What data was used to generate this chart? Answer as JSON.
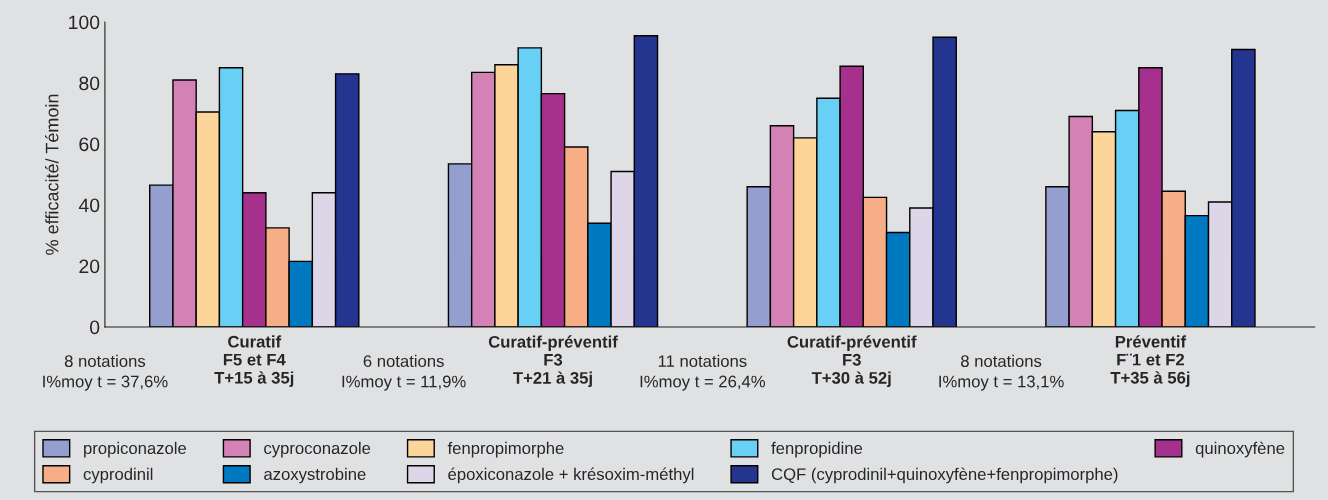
{
  "chart_data": {
    "type": "bar",
    "ylabel": "% efficacité/ Témoin",
    "categories": [
      "Curatif\nF5 et F4\nT+15 à 35j",
      "Curatif-préventif\nF3\nT+21 à 35j",
      "Curatif-préventif\nF3\nT+30 à 52j",
      "Préventif\nF¨1 et F2\nT+35 à 56j"
    ],
    "series": [
      {
        "name": "propiconazole",
        "color": "#949fd0",
        "values": [
          46.5,
          53.5,
          46,
          46
        ]
      },
      {
        "name": "cyproconazole",
        "color": "#d481b5",
        "values": [
          81,
          83.5,
          66,
          69
        ]
      },
      {
        "name": "fenpropimorphe",
        "color": "#fdd49a",
        "values": [
          70.5,
          86,
          62,
          64
        ]
      },
      {
        "name": "fenpropidine",
        "color": "#68cff5",
        "values": [
          85,
          91.5,
          75,
          71
        ]
      },
      {
        "name": "quinoxyfène",
        "color": "#a5318d",
        "values": [
          44,
          76.5,
          85.5,
          85
        ]
      },
      {
        "name": "cyprodinil",
        "color": "#f7ae86",
        "values": [
          32.5,
          59,
          42.5,
          44.5
        ]
      },
      {
        "name": "azoxystrobine",
        "color": "#0079c1",
        "values": [
          21.5,
          34,
          31,
          36.5
        ]
      },
      {
        "name": "époxiconazole + krésoxim-méthyl",
        "color": "#ddd5e8",
        "values": [
          44,
          51,
          39,
          41
        ]
      },
      {
        "name": "CQF (cyprodinil+quinoxyfène+fenpropimorphe)",
        "color": "#24358f",
        "values": [
          83,
          95.5,
          95,
          91
        ]
      }
    ],
    "annotations": [
      "8 notations\nI%moy t = 37,6%",
      "6 notations\nI%moy t = 11,9%",
      "11 notations\nI%moy t = 26,4%",
      "8 notations\nI%moy t = 13,1%"
    ],
    "ylim": [
      0,
      100
    ],
    "yticks": [
      0,
      20,
      40,
      60,
      80,
      100
    ],
    "grid": false,
    "legend": "bottom"
  }
}
